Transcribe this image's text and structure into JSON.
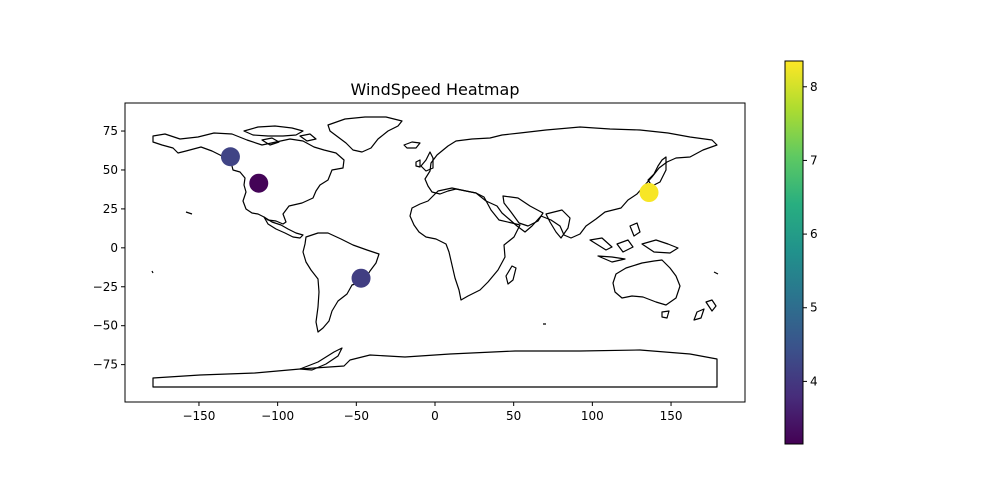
{
  "chart_data": {
    "type": "scatter",
    "title": "WindSpeed Heatmap",
    "xlabel": "",
    "ylabel": "",
    "xlim": [
      -197,
      197
    ],
    "ylim": [
      -99,
      93
    ],
    "x_ticks": [
      -150,
      -100,
      -50,
      0,
      50,
      100,
      150
    ],
    "y_ticks": [
      75,
      50,
      25,
      0,
      -25,
      -50,
      -75
    ],
    "x_tick_labels": [
      "−150",
      "−100",
      "−50",
      "0",
      "50",
      "100",
      "150"
    ],
    "y_tick_labels": [
      "75",
      "50",
      "25",
      "0",
      "−25",
      "−50",
      "−75"
    ],
    "grid": false,
    "colormap": "viridis",
    "colorbar": {
      "range": [
        3.15,
        8.35
      ],
      "ticks": [
        4,
        5,
        6,
        7,
        8
      ],
      "tick_labels": [
        "4",
        "5",
        "6",
        "7",
        "8"
      ]
    },
    "points": [
      {
        "x": -130,
        "y": 58.5,
        "value": 4.2
      },
      {
        "x": -112,
        "y": 41.5,
        "value": 3.2
      },
      {
        "x": -47,
        "y": -19.5,
        "value": 4.1
      },
      {
        "x": 136,
        "y": 35.5,
        "value": 8.3
      }
    ]
  }
}
